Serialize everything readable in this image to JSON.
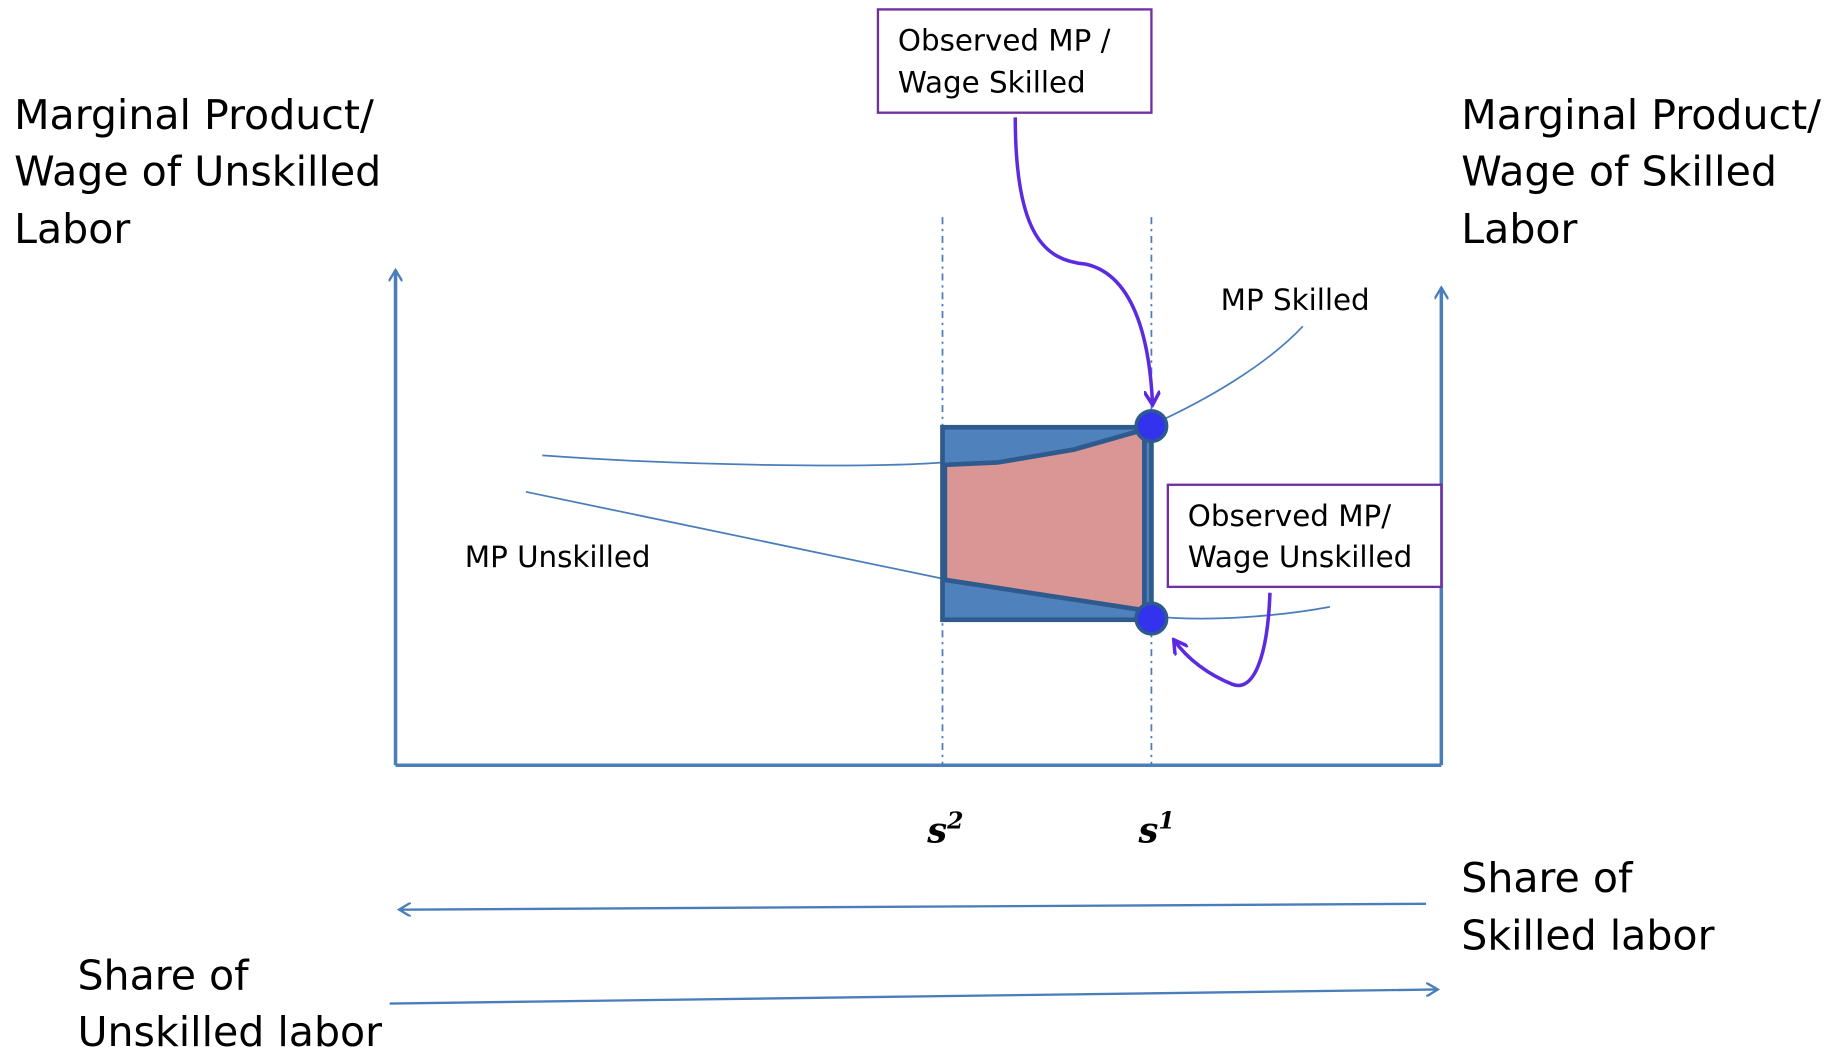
{
  "left_axis_label": [
    "Marginal Product/",
    "Wage of Unskilled",
    "Labor"
  ],
  "right_axis_label": [
    "Marginal Product/",
    "Wage of Skilled",
    "Labor"
  ],
  "callout_skilled": [
    "Observed MP /",
    "Wage Skilled"
  ],
  "callout_unskilled": [
    "Observed MP/",
    "Wage Unskilled"
  ],
  "curve_skilled": "MP Skilled",
  "curve_unskilled": "MP Unskilled",
  "marker_s2": {
    "base": "s",
    "sup": "2"
  },
  "marker_s1": {
    "base": "s",
    "sup": "1"
  },
  "share_skilled": [
    "Share of",
    "Skilled labor"
  ],
  "share_unskilled": [
    "Share of",
    "Unskilled labor"
  ]
}
